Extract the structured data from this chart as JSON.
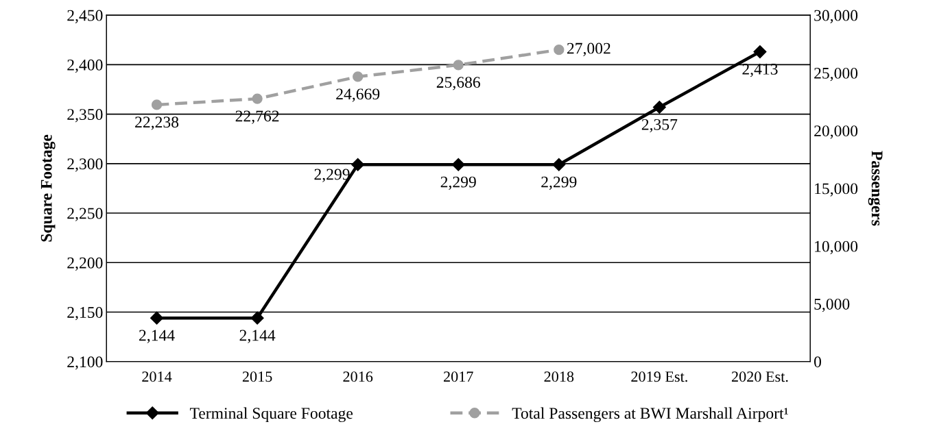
{
  "chart_data": {
    "type": "line",
    "ylabel": "Square Footage",
    "y2label": "Passengers",
    "categories": [
      "2014",
      "2015",
      "2016",
      "2017",
      "2018",
      "2019 Est.",
      "2020 Est."
    ],
    "series": [
      {
        "name": "Terminal Square Footage",
        "color": "#000000",
        "marker": "diamond",
        "line_style": "solid",
        "values": [
          2144,
          2144,
          2299,
          2299,
          2299,
          2357,
          2413
        ],
        "value_labels": [
          "2,144",
          "2,144",
          "2,299",
          "2,299",
          "2,299",
          "2,357",
          "2,413"
        ]
      },
      {
        "name": "Total Passengers at BWI Marshall Airport¹",
        "color": "#a0a0a0",
        "marker": "circle",
        "line_style": "dashed",
        "axis": "y2",
        "values": [
          22238,
          22762,
          24669,
          25686,
          27002,
          null,
          null
        ],
        "value_labels": [
          "22,238",
          "22,762",
          "24,669",
          "25,686",
          "27,002",
          null,
          null
        ]
      }
    ],
    "ylim": [
      2100,
      2450
    ],
    "yticks": [
      {
        "value": 2100,
        "label": "2,100"
      },
      {
        "value": 2150,
        "label": "2,150"
      },
      {
        "value": 2200,
        "label": "2,200"
      },
      {
        "value": 2250,
        "label": "2,250"
      },
      {
        "value": 2300,
        "label": "2,300"
      },
      {
        "value": 2350,
        "label": "2,350"
      },
      {
        "value": 2400,
        "label": "2,400"
      },
      {
        "value": 2450,
        "label": "2,450"
      }
    ],
    "y2lim": [
      0,
      30000
    ],
    "y2ticks": [
      0,
      {
        "value": 5000,
        "label": "5,000"
      },
      {
        "value": 10000,
        "label": "10,000"
      },
      {
        "value": 15000,
        "label": "15,000"
      },
      {
        "value": 20000,
        "label": "20,000"
      },
      {
        "value": 25000,
        "label": "25,000"
      },
      {
        "value": 30000,
        "label": "30,000"
      }
    ],
    "grid": "y",
    "legend": "bottom"
  }
}
